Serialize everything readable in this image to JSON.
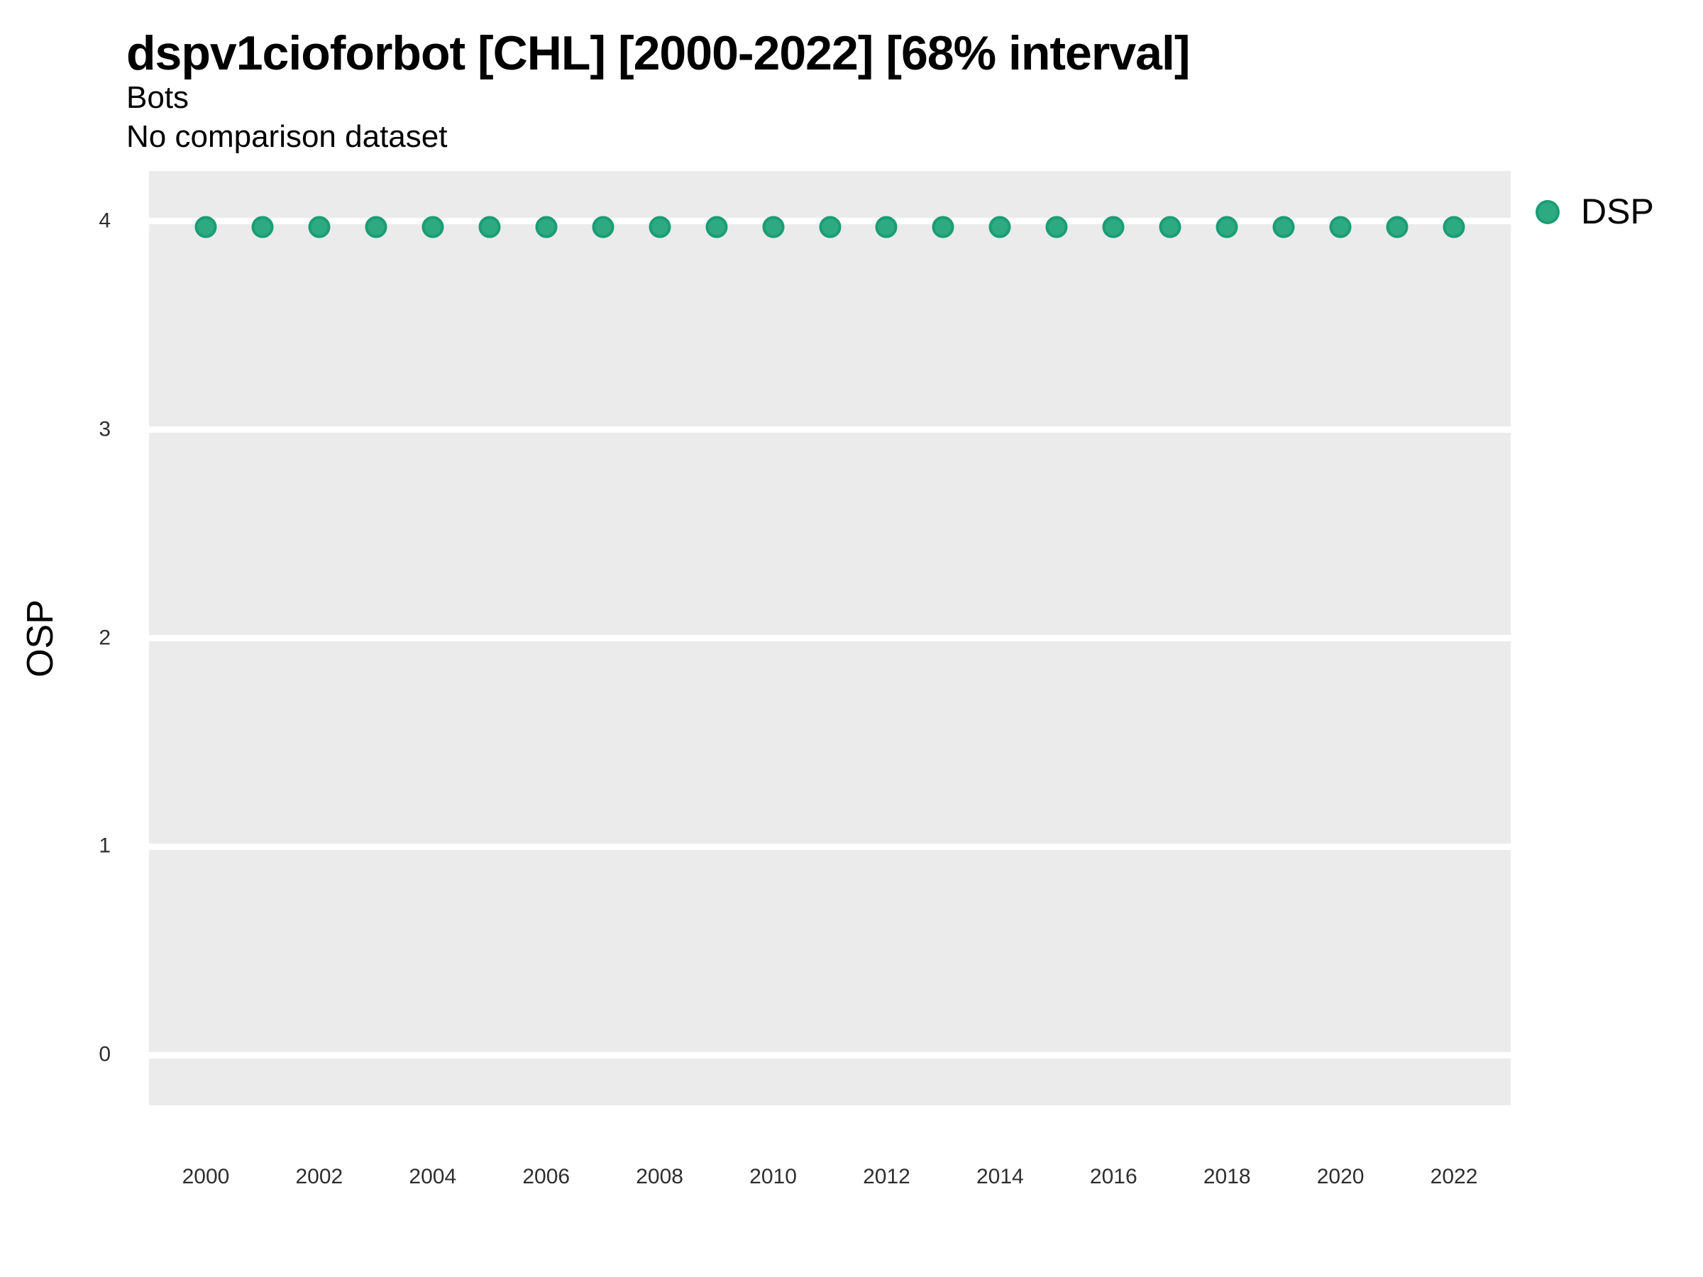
{
  "chart_data": {
    "type": "scatter",
    "title": "dspv1cioforbot [CHL] [2000-2022] [68% interval]",
    "subtitle": "Bots",
    "subtitle2": "No comparison dataset",
    "xlabel": "",
    "ylabel": "OSP",
    "x": [
      2000,
      2001,
      2002,
      2003,
      2004,
      2005,
      2006,
      2007,
      2008,
      2009,
      2010,
      2011,
      2012,
      2013,
      2014,
      2015,
      2016,
      2017,
      2018,
      2019,
      2020,
      2021,
      2022
    ],
    "series": [
      {
        "name": "DSP",
        "values": [
          3.97,
          3.97,
          3.97,
          3.97,
          3.97,
          3.97,
          3.97,
          3.97,
          3.97,
          3.97,
          3.97,
          3.97,
          3.97,
          3.97,
          3.97,
          3.97,
          3.97,
          3.97,
          3.97,
          3.97,
          3.97,
          3.97,
          3.97
        ],
        "fill": "#2EAA80",
        "stroke": "#1B9D75"
      }
    ],
    "x_tick_values": [
      2000,
      2002,
      2004,
      2006,
      2008,
      2010,
      2012,
      2014,
      2016,
      2018,
      2020,
      2022
    ],
    "y_tick_values": [
      0,
      1,
      2,
      3,
      4
    ],
    "xlim": [
      1999,
      2023
    ],
    "ylim": [
      -0.24,
      4.24
    ],
    "grid": "horizontal major white gridlines on gray panel, no minor, no vertical",
    "panel_bg": "#EBEBEB",
    "gridline_color": "#FFFFFF",
    "legend_position": "right-top",
    "legend_items": [
      "DSP"
    ]
  }
}
